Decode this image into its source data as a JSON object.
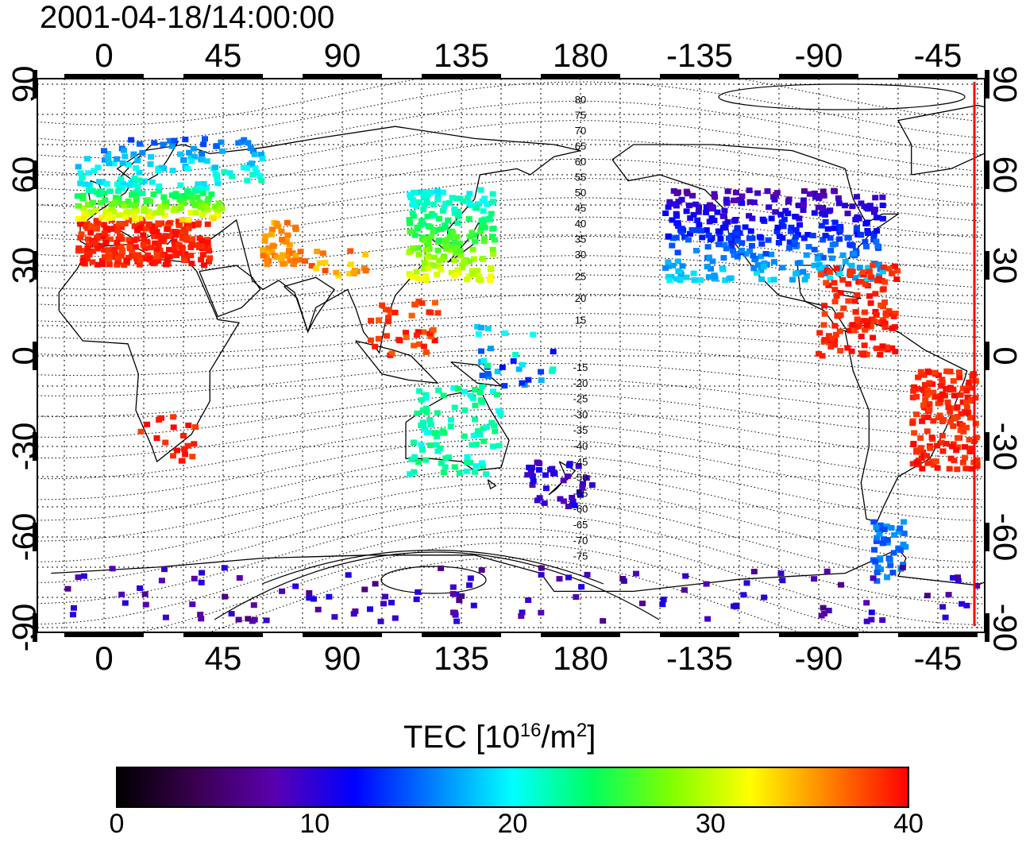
{
  "title": "2001-04-18/14:00:00",
  "map": {
    "top_lon_ticks": [
      "0",
      "45",
      "90",
      "135",
      "180",
      "-135",
      "-90",
      "-45"
    ],
    "bottom_lon_ticks": [
      "0",
      "45",
      "90",
      "135",
      "180",
      "-135",
      "-90",
      "-45"
    ],
    "left_lat_ticks": [
      "90",
      "60",
      "30",
      "0",
      "-30",
      "-60",
      "-90"
    ],
    "right_lat_ticks": [
      "90",
      "60",
      "30",
      "0",
      "-30",
      "-60",
      "-90"
    ],
    "contour_labels_north": [
      "80",
      "75",
      "70",
      "65",
      "60",
      "55",
      "50",
      "45",
      "40",
      "35",
      "30",
      "25",
      "20",
      "15"
    ],
    "contour_labels_south": [
      "-15",
      "-20",
      "-25",
      "-30",
      "-35",
      "-40",
      "-45",
      "-50",
      "-55",
      "-60",
      "-65",
      "-70",
      "-75"
    ],
    "terminator_color": "#ff0000"
  },
  "colorbar": {
    "title_main": "TEC  [10",
    "title_exp1": "16",
    "title_mid": "/m",
    "title_exp2": "2",
    "title_end": "]",
    "ticks": [
      "0",
      "10",
      "20",
      "30",
      "40"
    ],
    "colors": [
      "#000000",
      "#3a0050",
      "#5a00b0",
      "#0000ff",
      "#0080ff",
      "#00ffff",
      "#00ff60",
      "#80ff00",
      "#ffff00",
      "#ff8000",
      "#ff0000"
    ]
  }
}
